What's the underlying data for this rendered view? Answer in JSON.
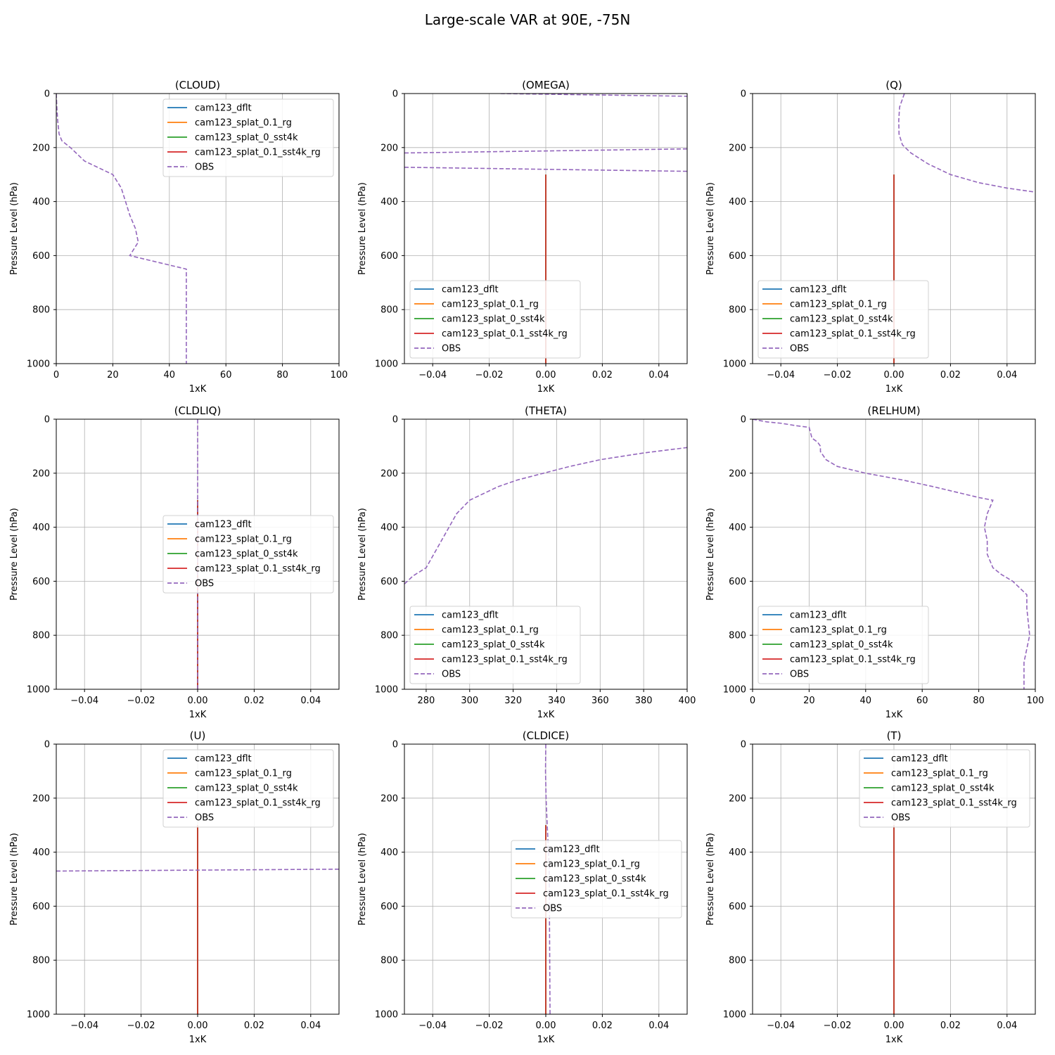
{
  "figure_title": "Large-scale VAR at 90E, -75N",
  "colors": {
    "cam123_dflt": "#1f77b4",
    "cam123_splat_0.1_rg": "#ff7f0e",
    "cam123_splat_0_sst4k": "#2ca02c",
    "cam123_splat_0.1_sst4k_rg": "#d62728",
    "OBS": "#9467bd",
    "grid": "#b0b0b0"
  },
  "chart_data": [
    {
      "type": "line",
      "title": "(CLOUD)",
      "xlabel": "1xK",
      "ylabel": "Pressure Level (hPa)",
      "xlim": [
        0,
        100
      ],
      "xticks": [
        0,
        20,
        40,
        60,
        80,
        100
      ],
      "xtick_labels": [
        "0",
        "20",
        "40",
        "60",
        "80",
        "100"
      ],
      "ylim": [
        1000,
        0
      ],
      "yticks": [
        0,
        200,
        400,
        600,
        800,
        1000
      ],
      "ytick_labels": [
        "0",
        "200",
        "400",
        "600",
        "800",
        "1000"
      ],
      "grid": true,
      "legend_loc": "upper-right",
      "series": [
        {
          "name": "cam123_dflt",
          "style": "solid",
          "x": [],
          "y": []
        },
        {
          "name": "cam123_splat_0.1_rg",
          "style": "solid",
          "x": [],
          "y": []
        },
        {
          "name": "cam123_splat_0_sst4k",
          "style": "solid",
          "x": [],
          "y": []
        },
        {
          "name": "cam123_splat_0.1_sst4k_rg",
          "style": "solid",
          "x": [],
          "y": []
        },
        {
          "name": "OBS",
          "style": "dashed",
          "x": [
            0,
            0.2,
            0.5,
            1,
            2,
            5,
            10,
            20,
            23,
            26,
            28,
            29,
            26,
            46,
            46,
            46
          ],
          "y": [
            0,
            50,
            100,
            150,
            175,
            200,
            250,
            300,
            350,
            450,
            500,
            550,
            600,
            650,
            800,
            1000
          ]
        }
      ]
    },
    {
      "type": "line",
      "title": "(OMEGA)",
      "xlabel": "1xK",
      "ylabel": "Pressure Level (hPa)",
      "xlim": [
        -0.05,
        0.05
      ],
      "xticks": [
        -0.04,
        -0.02,
        0,
        0.02,
        0.04
      ],
      "xtick_labels": [
        "−0.04",
        "−0.02",
        "0.00",
        "0.02",
        "0.04"
      ],
      "ylim": [
        1000,
        0
      ],
      "yticks": [
        0,
        200,
        400,
        600,
        800,
        1000
      ],
      "ytick_labels": [
        "0",
        "200",
        "400",
        "600",
        "800",
        "1000"
      ],
      "grid": true,
      "legend_loc": "lower-left",
      "series": [
        {
          "name": "cam123_dflt",
          "style": "solid",
          "x": [
            0,
            0
          ],
          "y": [
            300,
            1000
          ]
        },
        {
          "name": "cam123_splat_0.1_rg",
          "style": "solid",
          "x": [
            0,
            0
          ],
          "y": [
            300,
            1000
          ]
        },
        {
          "name": "cam123_splat_0_sst4k",
          "style": "solid",
          "x": [
            0,
            0
          ],
          "y": [
            300,
            1000
          ]
        },
        {
          "name": "cam123_splat_0.1_sst4k_rg",
          "style": "solid",
          "x": [
            0,
            0
          ],
          "y": [
            300,
            1000
          ]
        },
        {
          "name": "OBS",
          "style": "dashed",
          "x": [
            -0.016,
            0.05,
            null,
            -0.05,
            0.05,
            null,
            -0.05,
            0.05
          ],
          "y": [
            0,
            10,
            null,
            220,
            205,
            null,
            273,
            288
          ]
        }
      ]
    },
    {
      "type": "line",
      "title": "(Q)",
      "xlabel": "1xK",
      "ylabel": "Pressure Level (hPa)",
      "xlim": [
        -0.05,
        0.05
      ],
      "xticks": [
        -0.04,
        -0.02,
        0,
        0.02,
        0.04
      ],
      "xtick_labels": [
        "−0.04",
        "−0.02",
        "0.00",
        "0.02",
        "0.04"
      ],
      "ylim": [
        1000,
        0
      ],
      "yticks": [
        0,
        200,
        400,
        600,
        800,
        1000
      ],
      "ytick_labels": [
        "0",
        "200",
        "400",
        "600",
        "800",
        "1000"
      ],
      "grid": true,
      "legend_loc": "lower-left",
      "series": [
        {
          "name": "cam123_dflt",
          "style": "solid",
          "x": [
            0,
            0
          ],
          "y": [
            300,
            1000
          ]
        },
        {
          "name": "cam123_splat_0.1_rg",
          "style": "solid",
          "x": [
            0,
            0
          ],
          "y": [
            300,
            1000
          ]
        },
        {
          "name": "cam123_splat_0_sst4k",
          "style": "solid",
          "x": [
            0,
            0
          ],
          "y": [
            300,
            1000
          ]
        },
        {
          "name": "cam123_splat_0.1_sst4k_rg",
          "style": "solid",
          "x": [
            0,
            0
          ],
          "y": [
            300,
            1000
          ]
        },
        {
          "name": "OBS",
          "style": "dashed",
          "x": [
            0.0037,
            0.002,
            0.0017,
            0.0018,
            0.003,
            0.006,
            0.012,
            0.02,
            0.03,
            0.04,
            0.05
          ],
          "y": [
            0,
            50,
            100,
            150,
            190,
            220,
            260,
            300,
            330,
            350,
            365
          ]
        }
      ]
    },
    {
      "type": "line",
      "title": "(CLDLIQ)",
      "xlabel": "1xK",
      "ylabel": "Pressure Level (hPa)",
      "xlim": [
        -0.05,
        0.05
      ],
      "xticks": [
        -0.04,
        -0.02,
        0,
        0.02,
        0.04
      ],
      "xtick_labels": [
        "−0.04",
        "−0.02",
        "0.00",
        "0.02",
        "0.04"
      ],
      "ylim": [
        1000,
        0
      ],
      "yticks": [
        0,
        200,
        400,
        600,
        800,
        1000
      ],
      "ytick_labels": [
        "0",
        "200",
        "400",
        "600",
        "800",
        "1000"
      ],
      "grid": true,
      "legend_loc": "center-right",
      "series": [
        {
          "name": "cam123_dflt",
          "style": "solid",
          "x": [
            0,
            0
          ],
          "y": [
            300,
            1000
          ]
        },
        {
          "name": "cam123_splat_0.1_rg",
          "style": "solid",
          "x": [
            0,
            0
          ],
          "y": [
            300,
            1000
          ]
        },
        {
          "name": "cam123_splat_0_sst4k",
          "style": "solid",
          "x": [
            0,
            0
          ],
          "y": [
            300,
            1000
          ]
        },
        {
          "name": "cam123_splat_0.1_sst4k_rg",
          "style": "solid",
          "x": [
            0,
            0
          ],
          "y": [
            300,
            1000
          ]
        },
        {
          "name": "OBS",
          "style": "dashed",
          "x": [
            0,
            0
          ],
          "y": [
            0,
            1000
          ]
        }
      ]
    },
    {
      "type": "line",
      "title": "(THETA)",
      "xlabel": "1xK",
      "ylabel": "Pressure Level (hPa)",
      "xlim": [
        270,
        400
      ],
      "xticks": [
        280,
        300,
        320,
        340,
        360,
        380,
        400
      ],
      "xtick_labels": [
        "280",
        "300",
        "320",
        "340",
        "360",
        "380",
        "400"
      ],
      "ylim": [
        1000,
        0
      ],
      "yticks": [
        0,
        200,
        400,
        600,
        800,
        1000
      ],
      "ytick_labels": [
        "0",
        "200",
        "400",
        "600",
        "800",
        "1000"
      ],
      "grid": true,
      "legend_loc": "lower-left",
      "series": [
        {
          "name": "cam123_dflt",
          "style": "solid",
          "x": [],
          "y": []
        },
        {
          "name": "cam123_splat_0.1_rg",
          "style": "solid",
          "x": [],
          "y": []
        },
        {
          "name": "cam123_splat_0_sst4k",
          "style": "solid",
          "x": [],
          "y": []
        },
        {
          "name": "cam123_splat_0.1_sst4k_rg",
          "style": "solid",
          "x": [],
          "y": []
        },
        {
          "name": "OBS",
          "style": "dashed",
          "x": [
            270,
            274,
            280,
            287,
            294,
            300,
            313,
            322,
            334,
            346,
            360,
            380,
            400
          ],
          "y": [
            610,
            580,
            550,
            450,
            350,
            300,
            250,
            225,
            200,
            175,
            150,
            125,
            105
          ]
        }
      ]
    },
    {
      "type": "line",
      "title": "(RELHUM)",
      "xlabel": "1xK",
      "ylabel": "Pressure Level (hPa)",
      "xlim": [
        0,
        100
      ],
      "xticks": [
        0,
        20,
        40,
        60,
        80,
        100
      ],
      "xtick_labels": [
        "0",
        "20",
        "40",
        "60",
        "80",
        "100"
      ],
      "ylim": [
        1000,
        0
      ],
      "yticks": [
        0,
        200,
        400,
        600,
        800,
        1000
      ],
      "ytick_labels": [
        "0",
        "200",
        "400",
        "600",
        "800",
        "1000"
      ],
      "grid": true,
      "legend_loc": "lower-left",
      "series": [
        {
          "name": "cam123_dflt",
          "style": "solid",
          "x": [],
          "y": []
        },
        {
          "name": "cam123_splat_0.1_rg",
          "style": "solid",
          "x": [],
          "y": []
        },
        {
          "name": "cam123_splat_0_sst4k",
          "style": "solid",
          "x": [],
          "y": []
        },
        {
          "name": "cam123_splat_0.1_sst4k_rg",
          "style": "solid",
          "x": [],
          "y": []
        },
        {
          "name": "OBS",
          "style": "dashed",
          "x": [
            0,
            5,
            10,
            16,
            20,
            21,
            23,
            24,
            24,
            26,
            30,
            40,
            53,
            64,
            72,
            80,
            85,
            83,
            82,
            83,
            83,
            84,
            85,
            88,
            92,
            97,
            97,
            98,
            97,
            96,
            96
          ],
          "y": [
            0,
            10,
            15,
            25,
            30,
            70,
            85,
            100,
            120,
            150,
            175,
            200,
            225,
            250,
            270,
            290,
            300,
            350,
            400,
            450,
            500,
            525,
            550,
            575,
            600,
            650,
            700,
            800,
            850,
            900,
            1000
          ]
        }
      ]
    },
    {
      "type": "line",
      "title": "(U)",
      "xlabel": "1xK",
      "ylabel": "Pressure Level (hPa)",
      "xlim": [
        -0.05,
        0.05
      ],
      "xticks": [
        -0.04,
        -0.02,
        0,
        0.02,
        0.04
      ],
      "xtick_labels": [
        "−0.04",
        "−0.02",
        "0.00",
        "0.02",
        "0.04"
      ],
      "ylim": [
        1000,
        0
      ],
      "yticks": [
        0,
        200,
        400,
        600,
        800,
        1000
      ],
      "ytick_labels": [
        "0",
        "200",
        "400",
        "600",
        "800",
        "1000"
      ],
      "grid": true,
      "legend_loc": "upper-right",
      "series": [
        {
          "name": "cam123_dflt",
          "style": "solid",
          "x": [
            0,
            0
          ],
          "y": [
            300,
            1000
          ]
        },
        {
          "name": "cam123_splat_0.1_rg",
          "style": "solid",
          "x": [
            0,
            0
          ],
          "y": [
            300,
            1000
          ]
        },
        {
          "name": "cam123_splat_0_sst4k",
          "style": "solid",
          "x": [
            0,
            0
          ],
          "y": [
            300,
            1000
          ]
        },
        {
          "name": "cam123_splat_0.1_sst4k_rg",
          "style": "solid",
          "x": [
            0,
            0
          ],
          "y": [
            300,
            1000
          ]
        },
        {
          "name": "OBS",
          "style": "dashed",
          "x": [
            -0.05,
            0.05
          ],
          "y": [
            470,
            463
          ]
        }
      ]
    },
    {
      "type": "line",
      "title": "(CLDICE)",
      "xlabel": "1xK",
      "ylabel": "Pressure Level (hPa)",
      "xlim": [
        -0.05,
        0.05
      ],
      "xticks": [
        -0.04,
        -0.02,
        0,
        0.02,
        0.04
      ],
      "xtick_labels": [
        "−0.04",
        "−0.02",
        "0.00",
        "0.02",
        "0.04"
      ],
      "ylim": [
        1000,
        0
      ],
      "yticks": [
        0,
        200,
        400,
        600,
        800,
        1000
      ],
      "ytick_labels": [
        "0",
        "200",
        "400",
        "600",
        "800",
        "1000"
      ],
      "grid": true,
      "legend_loc": "center-right",
      "series": [
        {
          "name": "cam123_dflt",
          "style": "solid",
          "x": [
            0,
            0
          ],
          "y": [
            300,
            1000
          ]
        },
        {
          "name": "cam123_splat_0.1_rg",
          "style": "solid",
          "x": [
            0,
            0
          ],
          "y": [
            300,
            1000
          ]
        },
        {
          "name": "cam123_splat_0_sst4k",
          "style": "solid",
          "x": [
            0,
            0
          ],
          "y": [
            300,
            1000
          ]
        },
        {
          "name": "cam123_splat_0.1_sst4k_rg",
          "style": "solid",
          "x": [
            0,
            0
          ],
          "y": [
            300,
            1000
          ]
        },
        {
          "name": "OBS",
          "style": "dashed",
          "x": [
            0,
            -0.0001,
            0.0001,
            0.0005,
            0.0012,
            0.0015
          ],
          "y": [
            0,
            100,
            200,
            300,
            450,
            1000
          ]
        }
      ]
    },
    {
      "type": "line",
      "title": "(T)",
      "xlabel": "1xK",
      "ylabel": "Pressure Level (hPa)",
      "xlim": [
        -0.05,
        0.05
      ],
      "xticks": [
        -0.04,
        -0.02,
        0,
        0.02,
        0.04
      ],
      "xtick_labels": [
        "−0.04",
        "−0.02",
        "0.00",
        "0.02",
        "0.04"
      ],
      "ylim": [
        1000,
        0
      ],
      "yticks": [
        0,
        200,
        400,
        600,
        800,
        1000
      ],
      "ytick_labels": [
        "0",
        "200",
        "400",
        "600",
        "800",
        "1000"
      ],
      "grid": true,
      "legend_loc": "upper-right",
      "series": [
        {
          "name": "cam123_dflt",
          "style": "solid",
          "x": [
            0,
            0
          ],
          "y": [
            300,
            1000
          ]
        },
        {
          "name": "cam123_splat_0.1_rg",
          "style": "solid",
          "x": [
            0,
            0
          ],
          "y": [
            300,
            1000
          ]
        },
        {
          "name": "cam123_splat_0_sst4k",
          "style": "solid",
          "x": [
            0,
            0
          ],
          "y": [
            300,
            1000
          ]
        },
        {
          "name": "cam123_splat_0.1_sst4k_rg",
          "style": "solid",
          "x": [
            0,
            0
          ],
          "y": [
            300,
            1000
          ]
        },
        {
          "name": "OBS",
          "style": "dashed",
          "x": [],
          "y": []
        }
      ]
    }
  ]
}
